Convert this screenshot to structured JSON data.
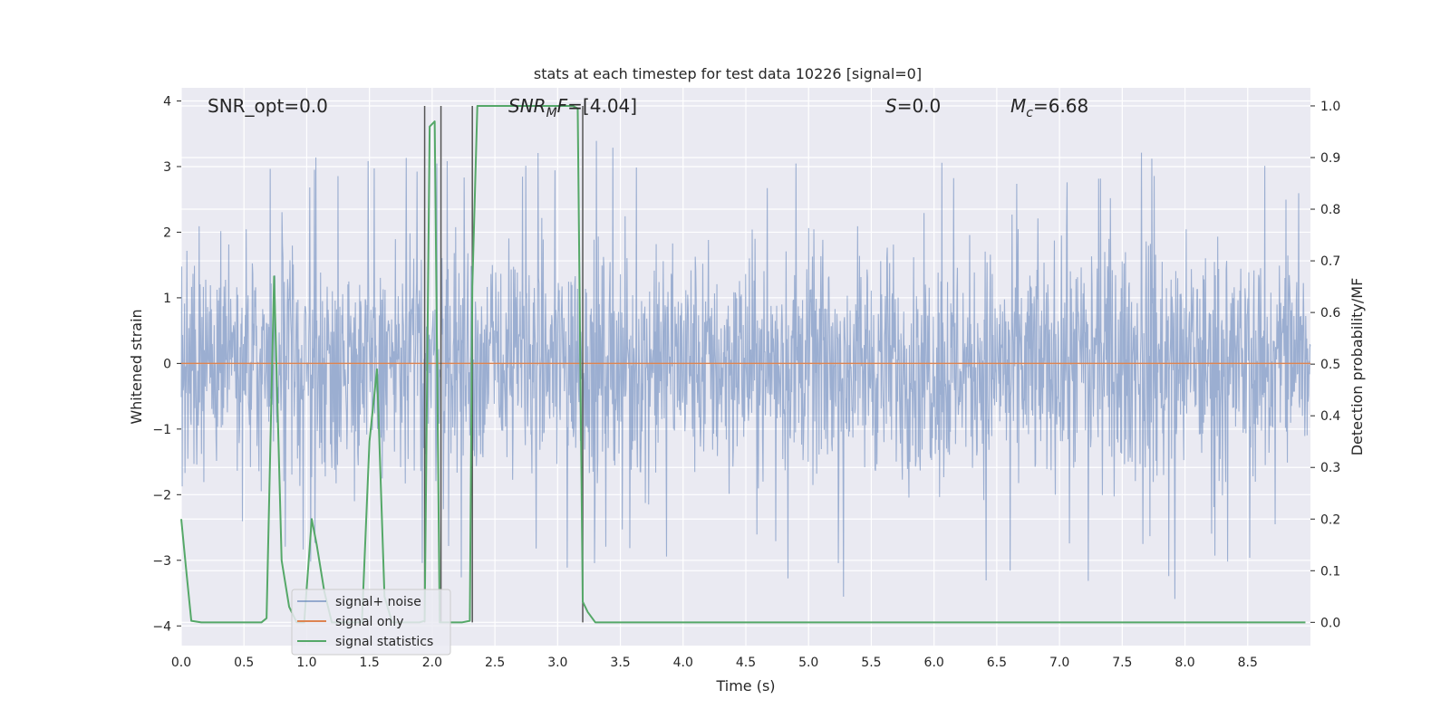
{
  "chart_data": {
    "type": "line",
    "title": "stats at each timestep for test data 10226 [signal=0]",
    "xlabel": "Time (s)",
    "ylabel": "Whitened strain",
    "y2label": "Detection probability/MF",
    "xlim": [
      0.0,
      9.0
    ],
    "ylim": [
      -4.3,
      4.2
    ],
    "y2lim": [
      -0.045,
      1.035
    ],
    "xticks": [
      "0.0",
      "0.5",
      "1.0",
      "1.5",
      "2.0",
      "2.5",
      "3.0",
      "3.5",
      "4.0",
      "4.5",
      "5.0",
      "5.5",
      "6.0",
      "6.5",
      "7.0",
      "7.5",
      "8.0",
      "8.5"
    ],
    "yticks": [
      "4",
      "3",
      "2",
      "1",
      "0",
      "−1",
      "−2",
      "−3",
      "−4"
    ],
    "y2ticks": [
      "1.0",
      "0.9",
      "0.8",
      "0.7",
      "0.6",
      "0.5",
      "0.4",
      "0.3",
      "0.2",
      "0.1",
      "0.0"
    ],
    "grid": true,
    "legend_placement": "lower-left",
    "annotations": {
      "snr_opt": "SNR_opt=0.0",
      "snr_mf_sym": "SNR",
      "snr_mf_sub": "M",
      "snr_mf_sym2": "F",
      "snr_mf_val": "=[4.04]",
      "s_sym": "S",
      "s_val": "=0.0",
      "mc_sym": "M",
      "mc_sub": "c",
      "mc_val": "=6.68"
    },
    "series": [
      {
        "name": "signal+ noise",
        "color": "#4c72b0",
        "axis": "left",
        "description_values": "noise strain spanning roughly -3.8 to 3.7",
        "envelope_peaks": [
          2.4,
          3.7,
          3.6,
          3.3,
          3.1,
          3.3,
          3.5,
          3.4,
          3.2,
          3.5,
          3.3,
          3.6,
          3.3,
          3.5,
          3.0,
          3.3,
          3.4,
          3.0,
          3.3,
          3.3,
          3.4,
          3.2,
          3.3,
          3.0,
          3.1,
          3.4,
          3.0,
          3.6,
          3.1,
          3.0
        ],
        "envelope_troughs": [
          -2.6,
          -3.0,
          -3.3,
          -3.1,
          -3.0,
          -3.2,
          -3.6,
          -3.4,
          -3.0,
          -3.3,
          -3.4,
          -3.0,
          -3.3,
          -3.6,
          -3.1,
          -3.2,
          -3.8,
          -3.6,
          -3.3,
          -3.2,
          -3.0,
          -3.4,
          -3.2,
          -3.1,
          -3.5,
          -3.2,
          -3.6,
          -3.1,
          -3.4,
          -2.8
        ]
      },
      {
        "name": "signal only",
        "color": "#dd8452",
        "axis": "left",
        "x": [
          0.0,
          9.0
        ],
        "y": [
          0.0,
          0.0
        ]
      },
      {
        "name": "signal statistics",
        "color": "#55a868",
        "axis": "right",
        "x": [
          0.0,
          0.04,
          0.08,
          0.16,
          0.24,
          0.32,
          0.4,
          0.48,
          0.56,
          0.64,
          0.68,
          0.74,
          0.8,
          0.86,
          0.92,
          0.98,
          1.04,
          1.08,
          1.14,
          1.2,
          1.26,
          1.32,
          1.38,
          1.44,
          1.5,
          1.56,
          1.62,
          1.68,
          1.74,
          1.8,
          1.86,
          1.9,
          1.94,
          1.98,
          2.02,
          2.06,
          2.12,
          2.18,
          2.24,
          2.3,
          2.32,
          2.36,
          2.4,
          2.48,
          2.56,
          2.64,
          2.72,
          2.8,
          2.88,
          2.96,
          3.04,
          3.12,
          3.16,
          3.2,
          3.24,
          3.3,
          3.38,
          3.5,
          4.0,
          5.0,
          6.0,
          7.0,
          8.0,
          8.96
        ],
        "y": [
          0.2,
          0.1,
          0.003,
          0.0,
          0.0,
          0.0,
          0.0,
          0.0,
          0.0,
          0.0,
          0.008,
          0.67,
          0.12,
          0.03,
          0.0,
          0.0,
          0.2,
          0.15,
          0.06,
          0.0,
          0.0,
          0.0,
          0.0,
          0.0,
          0.35,
          0.49,
          0.05,
          0.0,
          0.0,
          0.0,
          0.0,
          0.0,
          0.003,
          0.96,
          0.97,
          0.0,
          0.0,
          0.0,
          0.0,
          0.003,
          0.65,
          1.0,
          1.0,
          1.0,
          1.0,
          1.0,
          1.0,
          1.0,
          1.0,
          1.0,
          1.0,
          1.0,
          0.995,
          0.04,
          0.02,
          0.0,
          0.0,
          0.0,
          0.0,
          0.0,
          0.0,
          0.0,
          0.0,
          0.0
        ]
      }
    ],
    "vlines": {
      "color": "#555555",
      "x": [
        1.94,
        2.07,
        2.32,
        3.2
      ]
    }
  }
}
